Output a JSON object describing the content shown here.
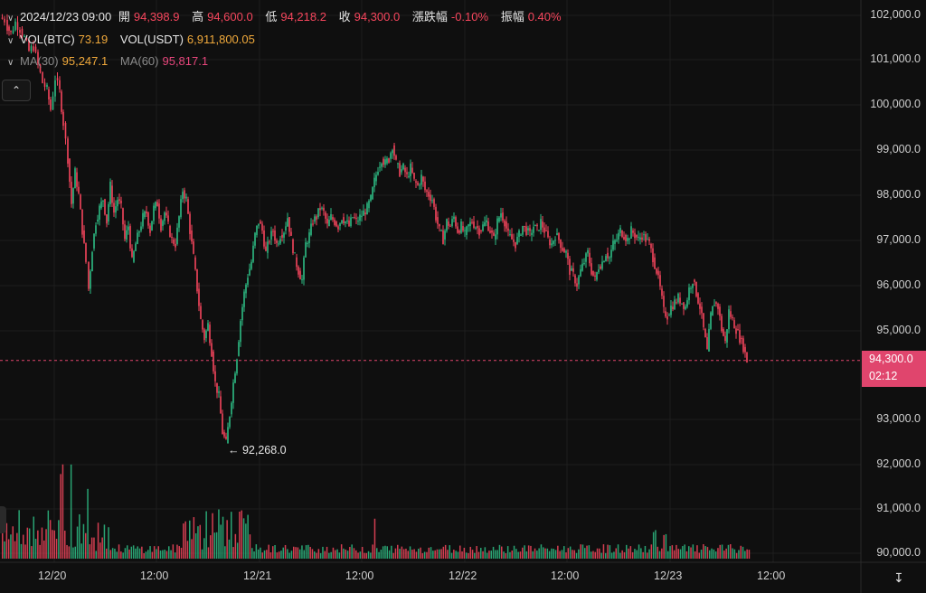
{
  "header": {
    "line1": {
      "datetime": "2024/12/23 09:00",
      "open_label": "開",
      "open": "94,398.9",
      "high_label": "高",
      "high": "94,600.0",
      "low_label": "低",
      "low": "94,218.2",
      "close_label": "收",
      "close": "94,300.0",
      "change_label": "漲跌幅",
      "change": "-0.10%",
      "amp_label": "振幅",
      "amp": "0.40%"
    },
    "line2": {
      "vol_btc_label": "VOL(BTC)",
      "vol_btc": "73.19",
      "vol_usdt_label": "VOL(USDT)",
      "vol_usdt": "6,911,800.05"
    },
    "line3": {
      "ma30_label": "MA(30)",
      "ma30": "95,247.1",
      "ma60_label": "MA(60)",
      "ma60": "95,817.1"
    }
  },
  "price_tag": {
    "price": "94,300.0",
    "countdown": "02:12"
  },
  "low_marker": {
    "text": "← 92,268.0"
  },
  "colors": {
    "up": "#2ebd85",
    "down": "#f6465d",
    "tag": "#e0456d",
    "background": "#0f0f0f"
  },
  "icons": {
    "collapse": "chevron-up-icon",
    "reset": "reset-scale-icon"
  },
  "chart_data": {
    "type": "candlestick",
    "y_ticks": [
      "102,000.0",
      "101,000.0",
      "100,000.0",
      "99,000.0",
      "98,000.0",
      "97,000.0",
      "96,000.0",
      "95,000.0",
      "93,000.0",
      "92,000.0",
      "91,000.0",
      "90,000.0"
    ],
    "x_ticks": [
      "12/20",
      "12:00",
      "12/21",
      "12:00",
      "12/22",
      "12:00",
      "12/23",
      "12:00"
    ],
    "ylim": [
      89950,
      102200
    ],
    "last_price": 94300,
    "grid": true,
    "price_path": [
      [
        0,
        101950
      ],
      [
        5,
        101900
      ],
      [
        8,
        101750
      ],
      [
        12,
        101600
      ],
      [
        17,
        101850
      ],
      [
        22,
        101700
      ],
      [
        27,
        101500
      ],
      [
        32,
        101200
      ],
      [
        37,
        101300
      ],
      [
        42,
        100900
      ],
      [
        47,
        100500
      ],
      [
        52,
        100350
      ],
      [
        56,
        99900
      ],
      [
        61,
        100600
      ],
      [
        66,
        100300
      ],
      [
        70,
        99600
      ],
      [
        75,
        98800
      ],
      [
        79,
        97800
      ],
      [
        83,
        98500
      ],
      [
        87,
        98000
      ],
      [
        91,
        97200
      ],
      [
        95,
        96500
      ],
      [
        98,
        95900
      ],
      [
        102,
        96800
      ],
      [
        106,
        97400
      ],
      [
        110,
        97700
      ],
      [
        114,
        97900
      ],
      [
        118,
        97400
      ],
      [
        122,
        98200
      ],
      [
        126,
        97600
      ],
      [
        130,
        97900
      ],
      [
        134,
        97700
      ],
      [
        138,
        97000
      ],
      [
        142,
        97300
      ],
      [
        146,
        96500
      ],
      [
        150,
        96900
      ],
      [
        154,
        97200
      ],
      [
        158,
        97500
      ],
      [
        162,
        97600
      ],
      [
        166,
        97200
      ],
      [
        170,
        97700
      ],
      [
        174,
        97800
      ],
      [
        178,
        97300
      ],
      [
        182,
        97600
      ],
      [
        186,
        97300
      ],
      [
        190,
        97000
      ],
      [
        194,
        96900
      ],
      [
        198,
        97500
      ],
      [
        202,
        98100
      ],
      [
        206,
        97900
      ],
      [
        210,
        97200
      ],
      [
        214,
        96600
      ],
      [
        218,
        95900
      ],
      [
        222,
        95200
      ],
      [
        226,
        94800
      ],
      [
        230,
        95100
      ],
      [
        234,
        94500
      ],
      [
        238,
        93800
      ],
      [
        242,
        93500
      ],
      [
        246,
        92700
      ],
      [
        250,
        92450
      ],
      [
        254,
        93100
      ],
      [
        258,
        93800
      ],
      [
        262,
        94400
      ],
      [
        266,
        95200
      ],
      [
        270,
        95800
      ],
      [
        274,
        96200
      ],
      [
        278,
        96500
      ],
      [
        282,
        97100
      ],
      [
        286,
        97400
      ],
      [
        290,
        97200
      ],
      [
        294,
        96700
      ],
      [
        298,
        97000
      ],
      [
        302,
        97200
      ],
      [
        306,
        96900
      ],
      [
        310,
        97100
      ],
      [
        314,
        97200
      ],
      [
        318,
        97500
      ],
      [
        322,
        97000
      ],
      [
        326,
        96600
      ],
      [
        330,
        96300
      ],
      [
        334,
        96100
      ],
      [
        338,
        96900
      ],
      [
        342,
        97100
      ],
      [
        346,
        97400
      ],
      [
        350,
        97500
      ],
      [
        354,
        97700
      ],
      [
        358,
        97600
      ],
      [
        362,
        97300
      ],
      [
        366,
        97500
      ],
      [
        370,
        97400
      ],
      [
        374,
        97300
      ],
      [
        378,
        97500
      ],
      [
        382,
        97400
      ],
      [
        386,
        97300
      ],
      [
        390,
        97500
      ],
      [
        394,
        97400
      ],
      [
        398,
        97500
      ],
      [
        402,
        97600
      ],
      [
        406,
        97700
      ],
      [
        410,
        97900
      ],
      [
        414,
        98300
      ],
      [
        418,
        98600
      ],
      [
        422,
        98800
      ],
      [
        426,
        98700
      ],
      [
        430,
        98800
      ],
      [
        434,
        99100
      ],
      [
        438,
        98700
      ],
      [
        442,
        98500
      ],
      [
        446,
        98600
      ],
      [
        450,
        98400
      ],
      [
        454,
        98600
      ],
      [
        458,
        98300
      ],
      [
        462,
        98200
      ],
      [
        466,
        98400
      ],
      [
        470,
        98100
      ],
      [
        474,
        98000
      ],
      [
        478,
        97900
      ],
      [
        482,
        97500
      ],
      [
        486,
        97200
      ],
      [
        490,
        97000
      ],
      [
        494,
        97400
      ],
      [
        498,
        97300
      ],
      [
        502,
        97500
      ],
      [
        506,
        97200
      ],
      [
        510,
        97300
      ],
      [
        514,
        97100
      ],
      [
        518,
        97300
      ],
      [
        522,
        97400
      ],
      [
        526,
        97300
      ],
      [
        530,
        97200
      ],
      [
        534,
        97300
      ],
      [
        538,
        97400
      ],
      [
        542,
        97200
      ],
      [
        546,
        97000
      ],
      [
        550,
        97400
      ],
      [
        554,
        97600
      ],
      [
        558,
        97400
      ],
      [
        562,
        97100
      ],
      [
        566,
        97000
      ],
      [
        570,
        96900
      ],
      [
        574,
        97100
      ],
      [
        578,
        97300
      ],
      [
        582,
        97200
      ],
      [
        586,
        97100
      ],
      [
        590,
        97300
      ],
      [
        594,
        97200
      ],
      [
        598,
        97400
      ],
      [
        602,
        97200
      ],
      [
        606,
        97000
      ],
      [
        610,
        96900
      ],
      [
        614,
        97100
      ],
      [
        618,
        97000
      ],
      [
        622,
        96800
      ],
      [
        626,
        96700
      ],
      [
        630,
        96300
      ],
      [
        634,
        96200
      ],
      [
        638,
        96000
      ],
      [
        642,
        96300
      ],
      [
        646,
        96500
      ],
      [
        650,
        96700
      ],
      [
        654,
        96300
      ],
      [
        658,
        96100
      ],
      [
        662,
        96400
      ],
      [
        666,
        96500
      ],
      [
        670,
        96700
      ],
      [
        674,
        96600
      ],
      [
        678,
        96900
      ],
      [
        682,
        97000
      ],
      [
        686,
        97200
      ],
      [
        690,
        97100
      ],
      [
        694,
        97000
      ],
      [
        698,
        97200
      ],
      [
        702,
        97100
      ],
      [
        706,
        97000
      ],
      [
        710,
        97100
      ],
      [
        714,
        97000
      ],
      [
        718,
        96900
      ],
      [
        722,
        96600
      ],
      [
        726,
        96300
      ],
      [
        730,
        95900
      ],
      [
        734,
        95400
      ],
      [
        738,
        95300
      ],
      [
        742,
        95500
      ],
      [
        746,
        95600
      ],
      [
        750,
        95700
      ],
      [
        754,
        95600
      ],
      [
        758,
        95500
      ],
      [
        762,
        95900
      ],
      [
        766,
        96100
      ],
      [
        770,
        95800
      ],
      [
        774,
        95500
      ],
      [
        778,
        95000
      ],
      [
        782,
        94500
      ],
      [
        786,
        95300
      ],
      [
        790,
        95600
      ],
      [
        794,
        95500
      ],
      [
        798,
        95000
      ],
      [
        802,
        94700
      ],
      [
        806,
        95400
      ],
      [
        810,
        95200
      ],
      [
        814,
        95000
      ],
      [
        818,
        94800
      ],
      [
        822,
        94600
      ],
      [
        826,
        94300
      ]
    ],
    "volume_note": "volume bars along bottom, mixed up/down colors"
  }
}
